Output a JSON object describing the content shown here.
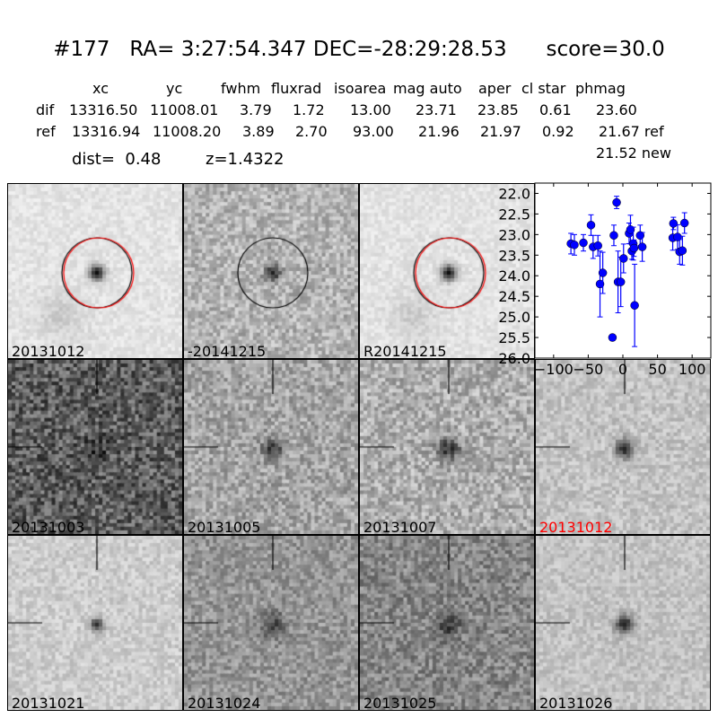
{
  "header": {
    "title": "#177   RA= 3:27:54.347 DEC=-28:29:28.53      score=30.0",
    "columns": [
      "xc",
      "yc",
      "fwhm",
      "fluxrad",
      "isoarea",
      "mag auto",
      "aper",
      "cl star",
      "phmag"
    ],
    "rows": [
      {
        "label": "dif",
        "values": [
          "13316.50",
          "11008.01",
          "3.79",
          "1.72",
          "13.00",
          "23.71",
          "23.85",
          "0.61",
          "23.60"
        ]
      },
      {
        "label": "ref",
        "values": [
          "13316.94",
          "11008.20",
          "3.89",
          "2.70",
          "93.00",
          "21.96",
          "21.97",
          "0.92",
          "21.67 ref"
        ]
      }
    ],
    "extra_phmag": "21.52 new",
    "dist": "dist=  0.48",
    "z": "z=1.4322"
  },
  "panels": [
    {
      "label": "20131012",
      "color": "#000000"
    },
    {
      "label": "-20141215",
      "color": "#000000"
    },
    {
      "label": "R20141215",
      "color": "#000000"
    },
    {
      "label": "20131003",
      "color": "#000000"
    },
    {
      "label": "20131005",
      "color": "#000000"
    },
    {
      "label": "20131007",
      "color": "#000000"
    },
    {
      "label": "20131012",
      "color": "#ff0000"
    },
    {
      "label": "20131021",
      "color": "#000000"
    },
    {
      "label": "20131024",
      "color": "#000000"
    },
    {
      "label": "20131025",
      "color": "#000000"
    },
    {
      "label": "20131026",
      "color": "#000000"
    }
  ],
  "chart_data": {
    "type": "scatter",
    "xlim": [
      -127,
      127
    ],
    "ylim": [
      26.0,
      21.75
    ],
    "y_inverted": true,
    "xticks": [
      -100,
      -50,
      0,
      50,
      100
    ],
    "xtick_labels": [
      "−100",
      "−50",
      "0",
      "50",
      "100"
    ],
    "yticks": [
      22.0,
      22.5,
      23.0,
      23.5,
      24.0,
      24.5,
      25.0,
      25.5,
      26.0
    ],
    "ytick_labels": [
      "22.0",
      "22.5",
      "23.0",
      "23.5",
      "24.0",
      "24.5",
      "25.0",
      "25.5",
      "26.0"
    ],
    "color": "#0000ff",
    "points": [
      {
        "x": -75,
        "y": 23.22,
        "err": 0.25
      },
      {
        "x": -70,
        "y": 23.25,
        "err": 0.25
      },
      {
        "x": -57,
        "y": 23.2,
        "err": 0.2
      },
      {
        "x": -46,
        "y": 22.77,
        "err": 0.25
      },
      {
        "x": -43,
        "y": 23.3,
        "err": 0.28
      },
      {
        "x": -36,
        "y": 23.27,
        "err": 0.25
      },
      {
        "x": -33,
        "y": 24.2,
        "err": 0.8
      },
      {
        "x": -29,
        "y": 23.93,
        "err": 0.5
      },
      {
        "x": -15,
        "y": 25.5,
        "err": 0.07
      },
      {
        "x": -13,
        "y": 23.02,
        "err": 0.25
      },
      {
        "x": -9,
        "y": 22.22,
        "err": 0.15
      },
      {
        "x": -7,
        "y": 24.15,
        "err": 0.75
      },
      {
        "x": -3,
        "y": 24.15,
        "err": 0.6
      },
      {
        "x": 1,
        "y": 23.58,
        "err": 0.35
      },
      {
        "x": 9,
        "y": 22.97,
        "err": 0.25
      },
      {
        "x": 11,
        "y": 22.88,
        "err": 0.35
      },
      {
        "x": 13,
        "y": 23.4,
        "err": 0.2
      },
      {
        "x": 15,
        "y": 23.22,
        "err": 0.4
      },
      {
        "x": 16,
        "y": 23.33,
        "err": 0.2
      },
      {
        "x": 17,
        "y": 24.72,
        "err": 1.0
      },
      {
        "x": 25,
        "y": 23.02,
        "err": 0.25
      },
      {
        "x": 28,
        "y": 23.3,
        "err": 0.35
      },
      {
        "x": 72,
        "y": 23.08,
        "err": 0.3
      },
      {
        "x": 73,
        "y": 22.73,
        "err": 0.15
      },
      {
        "x": 79,
        "y": 23.06,
        "err": 0.3
      },
      {
        "x": 82,
        "y": 23.42,
        "err": 0.3
      },
      {
        "x": 86,
        "y": 23.39,
        "err": 0.35
      },
      {
        "x": 89,
        "y": 22.72,
        "err": 0.25
      }
    ]
  }
}
